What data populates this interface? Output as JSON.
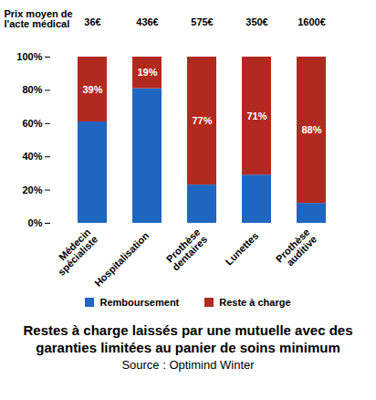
{
  "chart_data": {
    "type": "bar",
    "stacked": true,
    "title": "Restes à charge laissés par une mutuelle avec des garanties limitées au panier de soins minimum",
    "subtitle": "Source : Optimind Winter",
    "categories": [
      "Médecin\nspécialiste",
      "Hospitalisation",
      "Prothèse\ndentaires",
      "Lunettes",
      "Prothèse\nauditive"
    ],
    "series": [
      {
        "name": "Remboursement",
        "color": "#1f66c2",
        "values": [
          61,
          81,
          23,
          29,
          12
        ]
      },
      {
        "name": "Reste à charge",
        "color": "#b22a1f",
        "values": [
          39,
          19,
          77,
          71,
          88
        ],
        "data_labels": true,
        "value_labels": [
          "39%",
          "19%",
          "77%",
          "71%",
          "88%"
        ]
      }
    ],
    "ylim": [
      0,
      100
    ],
    "yticks": [
      {
        "value": 0,
        "label": "0%"
      },
      {
        "value": 20,
        "label": "20%"
      },
      {
        "value": 40,
        "label": "40%"
      },
      {
        "value": 60,
        "label": "60%"
      },
      {
        "value": 80,
        "label": "80%"
      },
      {
        "value": 100,
        "label": "100%"
      }
    ],
    "grid": false,
    "legend": "bottom",
    "annotations": {
      "header": "Prix moyen de\nl'acte médical",
      "prices": [
        "36€",
        "436€",
        "575€",
        "350€",
        "1600€"
      ]
    }
  }
}
